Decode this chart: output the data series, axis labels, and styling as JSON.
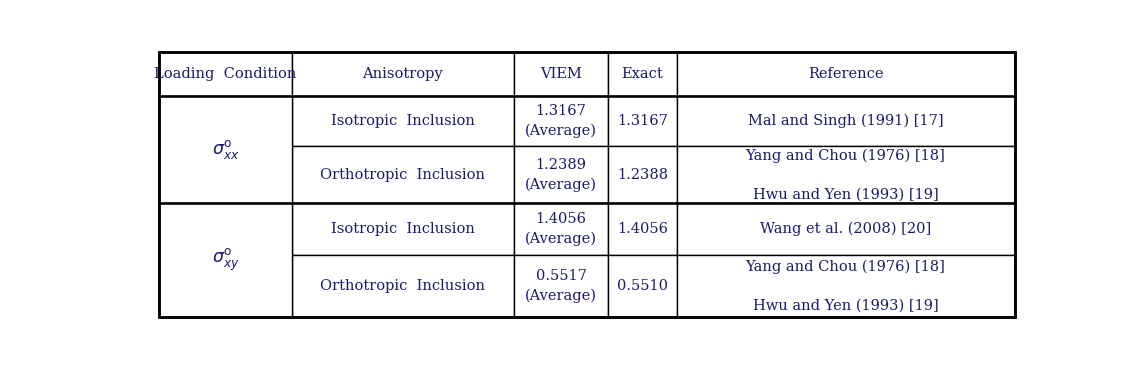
{
  "headers": [
    "Loading  Condition",
    "Anisotropy",
    "VIEM",
    "Exact",
    "Reference"
  ],
  "rows": [
    {
      "anisotropy": "Isotropic  Inclusion",
      "viem": "1.3167\n(Average)",
      "exact": "1.3167",
      "reference": "Mal and Singh (1991) [17]"
    },
    {
      "anisotropy": "Orthotropic  Inclusion",
      "viem": "1.2389\n(Average)",
      "exact": "1.2388",
      "reference": "Yang and Chou (1976) [18]\n\nHwu and Yen (1993) [19]"
    },
    {
      "anisotropy": "Isotropic  Inclusion",
      "viem": "1.4056\n(Average)",
      "exact": "1.4056",
      "reference": "Wang et al. (2008) [20]"
    },
    {
      "anisotropy": "Orthotropic  Inclusion",
      "viem": "0.5517\n(Average)",
      "exact": "0.5510",
      "reference": "Yang and Chou (1976) [18]\n\nHwu and Yen (1993) [19]"
    }
  ],
  "loading_labels": [
    "$\\sigma_{xx}^{\\mathrm{o}}$",
    "$\\sigma_{xy}^{\\mathrm{o}}$"
  ],
  "bg_color": "#ffffff",
  "border_color": "#000000",
  "text_color": "#1a1a6e",
  "font_size": 10.5,
  "header_font_size": 10.5,
  "lw_thin": 1.0,
  "lw_thick": 1.8
}
